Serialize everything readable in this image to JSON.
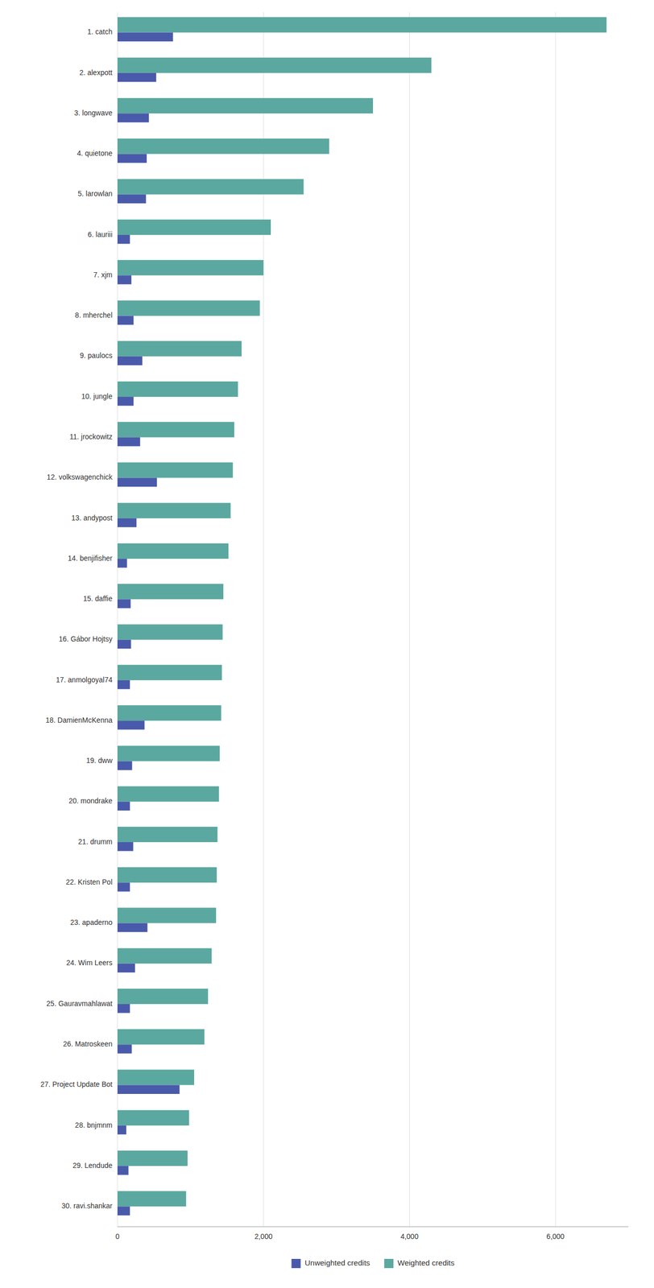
{
  "chart_data": {
    "type": "bar",
    "orientation": "horizontal",
    "categories": [
      "1. catch",
      "2. alexpott",
      "3. longwave",
      "4. quietone",
      "5. larowlan",
      "6. lauriii",
      "7. xjm",
      "8. mherchel",
      "9. paulocs",
      "10. jungle",
      "11. jrockowitz",
      "12. volkswagenchick",
      "13. andypost",
      "14. benjifisher",
      "15. daffie",
      "16. Gábor Hojtsy",
      "17. anmolgoyal74",
      "18. DamienMcKenna",
      "19. dww",
      "20. mondrake",
      "21. drumm",
      "22. Kristen Pol",
      "23. apaderno",
      "24. Wim Leers",
      "25. Gauravmahlawat",
      "26. Matroskeen",
      "27. Project Update Bot",
      "28. bnjmnm",
      "29. Lendude",
      "30. ravi.shankar"
    ],
    "series": [
      {
        "name": "Unweighted credits",
        "color": "#4a5aaa",
        "values": [
          760,
          530,
          430,
          400,
          390,
          170,
          190,
          220,
          340,
          220,
          310,
          540,
          260,
          130,
          180,
          185,
          170,
          370,
          200,
          170,
          215,
          170,
          410,
          240,
          170,
          195,
          850,
          120,
          150,
          170
        ]
      },
      {
        "name": "Weighted credits",
        "color": "#5ba8a0",
        "values": [
          6700,
          4300,
          3500,
          2900,
          2550,
          2100,
          2000,
          1950,
          1700,
          1650,
          1600,
          1580,
          1550,
          1520,
          1450,
          1440,
          1430,
          1420,
          1400,
          1390,
          1370,
          1360,
          1350,
          1290,
          1240,
          1190,
          1050,
          980,
          960,
          940
        ]
      }
    ],
    "xlim": [
      0,
      7000
    ],
    "xticks": [
      0,
      {
        "value": 2000,
        "label": "2,000"
      },
      {
        "value": 4000,
        "label": "4,000"
      },
      {
        "value": 6000,
        "label": "6,000"
      }
    ],
    "grid": true,
    "legend": "bottom"
  }
}
